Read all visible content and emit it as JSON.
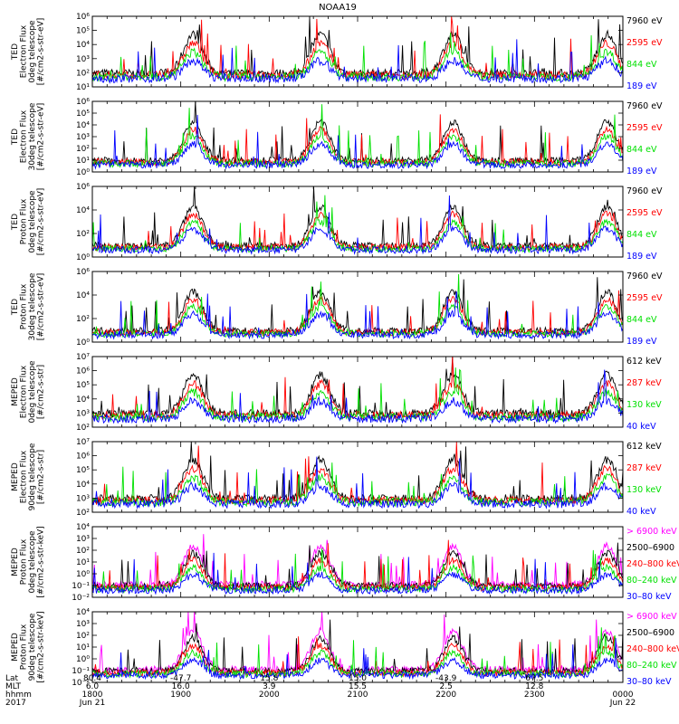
{
  "figure": {
    "title": "NOAA19"
  },
  "chart_data": {
    "type": "line",
    "xlim": [
      "18:00",
      "00:00"
    ],
    "x_tick_times": [
      "1800",
      "1900",
      "2000",
      "2100",
      "2200",
      "2300",
      "0000"
    ],
    "panels": [
      {
        "ylabel": [
          "TED",
          "Electron Flux",
          "0deg telescope",
          "[#/cm2-s-str-eV]"
        ],
        "y_exp_min": 1,
        "y_exp_max": 6,
        "y_ticks": [
          "10¹",
          "10²",
          "10³",
          "10⁴",
          "10⁵",
          "10⁶"
        ],
        "series": [
          {
            "name": "7960 eV",
            "color": "#000000"
          },
          {
            "name": "2595 eV",
            "color": "#ff0000"
          },
          {
            "name": "844 eV",
            "color": "#00e000"
          },
          {
            "name": "189 eV",
            "color": "#0000ff"
          }
        ]
      },
      {
        "ylabel": [
          "TED",
          "Electron Flux",
          "30deg telescope",
          "[#/cm2-s-str-eV]"
        ],
        "y_exp_min": 0,
        "y_exp_max": 6,
        "y_ticks": [
          "10⁰",
          "10¹",
          "10²",
          "10³",
          "10⁴",
          "10⁵",
          "10⁶"
        ],
        "series": [
          {
            "name": "7960 eV",
            "color": "#000000"
          },
          {
            "name": "2595 eV",
            "color": "#ff0000"
          },
          {
            "name": "844 eV",
            "color": "#00e000"
          },
          {
            "name": "189 eV",
            "color": "#0000ff"
          }
        ]
      },
      {
        "ylabel": [
          "TED",
          "Proton Flux",
          "0deg telescope",
          "[#/cm2-s-str-eV]"
        ],
        "y_exp_min": 0,
        "y_exp_max": 6,
        "y_ticks": [
          "10⁰",
          "10²",
          "10⁴",
          "10⁶"
        ],
        "series": [
          {
            "name": "7960 eV",
            "color": "#000000"
          },
          {
            "name": "2595 eV",
            "color": "#ff0000"
          },
          {
            "name": "844 eV",
            "color": "#00e000"
          },
          {
            "name": "189 eV",
            "color": "#0000ff"
          }
        ]
      },
      {
        "ylabel": [
          "TED",
          "Proton Flux",
          "30deg telescope",
          "[#/cm2-s-str-eV]"
        ],
        "y_exp_min": 0,
        "y_exp_max": 6,
        "y_ticks": [
          "10⁰",
          "10²",
          "10⁴",
          "10⁶"
        ],
        "series": [
          {
            "name": "7960 eV",
            "color": "#000000"
          },
          {
            "name": "2595 eV",
            "color": "#ff0000"
          },
          {
            "name": "844 eV",
            "color": "#00e000"
          },
          {
            "name": "189 eV",
            "color": "#0000ff"
          }
        ]
      },
      {
        "ylabel": [
          "MEPED",
          "Electron Flux",
          "0deg telescope",
          "[#/cm2-s-str]"
        ],
        "y_exp_min": 2,
        "y_exp_max": 7,
        "y_ticks": [
          "10²",
          "10³",
          "10⁴",
          "10⁵",
          "10⁶",
          "10⁷"
        ],
        "series": [
          {
            "name": "612 keV",
            "color": "#000000"
          },
          {
            "name": "287 keV",
            "color": "#ff0000"
          },
          {
            "name": "130 keV",
            "color": "#00e000"
          },
          {
            "name": "40 keV",
            "color": "#0000ff"
          }
        ]
      },
      {
        "ylabel": [
          "MEPED",
          "Electron Flux",
          "90deg telescope",
          "[#/cm2-s-str]"
        ],
        "y_exp_min": 2,
        "y_exp_max": 7,
        "y_ticks": [
          "10²",
          "10³",
          "10⁴",
          "10⁵",
          "10⁶",
          "10⁷"
        ],
        "series": [
          {
            "name": "612 keV",
            "color": "#000000"
          },
          {
            "name": "287 keV",
            "color": "#ff0000"
          },
          {
            "name": "130 keV",
            "color": "#00e000"
          },
          {
            "name": "40 keV",
            "color": "#0000ff"
          }
        ]
      },
      {
        "ylabel": [
          "MEPED",
          "Proton Flux",
          "0deg telescope",
          "[#/cm2-s-str-keV]"
        ],
        "y_exp_min": -2,
        "y_exp_max": 4,
        "y_ticks": [
          "10⁻²",
          "10⁻¹",
          "10⁰",
          "10¹",
          "10²",
          "10³",
          "10⁴"
        ],
        "series": [
          {
            "name": "> 6900 keV",
            "color": "#ff00ff"
          },
          {
            "name": "2500–6900",
            "color": "#000000"
          },
          {
            "name": "240–800 keV",
            "color": "#ff0000"
          },
          {
            "name": "80–240 keV",
            "color": "#00e000"
          },
          {
            "name": "30–80 keV",
            "color": "#0000ff"
          }
        ]
      },
      {
        "ylabel": [
          "MEPED",
          "Proton Flux",
          "90deg telescope",
          "[#/cm2-s-str-keV]"
        ],
        "y_exp_min": -2,
        "y_exp_max": 4,
        "y_ticks": [
          "10⁻²",
          "10⁻¹",
          "10⁰",
          "10¹",
          "10²",
          "10³",
          "10⁴"
        ],
        "series": [
          {
            "name": "> 6900 keV",
            "color": "#ff00ff"
          },
          {
            "name": "2500–6900",
            "color": "#000000"
          },
          {
            "name": "240–800 keV",
            "color": "#ff0000"
          },
          {
            "name": "80–240 keV",
            "color": "#00e000"
          },
          {
            "name": "30–80 keV",
            "color": "#0000ff"
          }
        ]
      }
    ],
    "ephemeris": {
      "row_labels": [
        "Lat",
        "MLT",
        "hhmm",
        "2017"
      ],
      "columns": [
        {
          "time": "18:00",
          "lat": "80.4",
          "mlt": "6.0",
          "hhmm": "1800",
          "date": "Jun 21"
        },
        {
          "time": "19:00",
          "lat": "-47.7",
          "mlt": "16.0",
          "hhmm": "1900",
          "date": ""
        },
        {
          "time": "20:00",
          "lat": "15.8",
          "mlt": "3.9",
          "hhmm": "2000",
          "date": ""
        },
        {
          "time": "21:00",
          "lat": "15.0",
          "mlt": "15.5",
          "hhmm": "2100",
          "date": ""
        },
        {
          "time": "22:00",
          "lat": "-43.9",
          "mlt": "2.5",
          "hhmm": "2200",
          "date": ""
        },
        {
          "time": "23:00",
          "lat": "67.5",
          "mlt": "12.8",
          "hhmm": "2300",
          "date": ""
        },
        {
          "time": "00:00",
          "lat": "",
          "mlt": "",
          "hhmm": "0000",
          "date": "Jun 22"
        }
      ]
    }
  }
}
